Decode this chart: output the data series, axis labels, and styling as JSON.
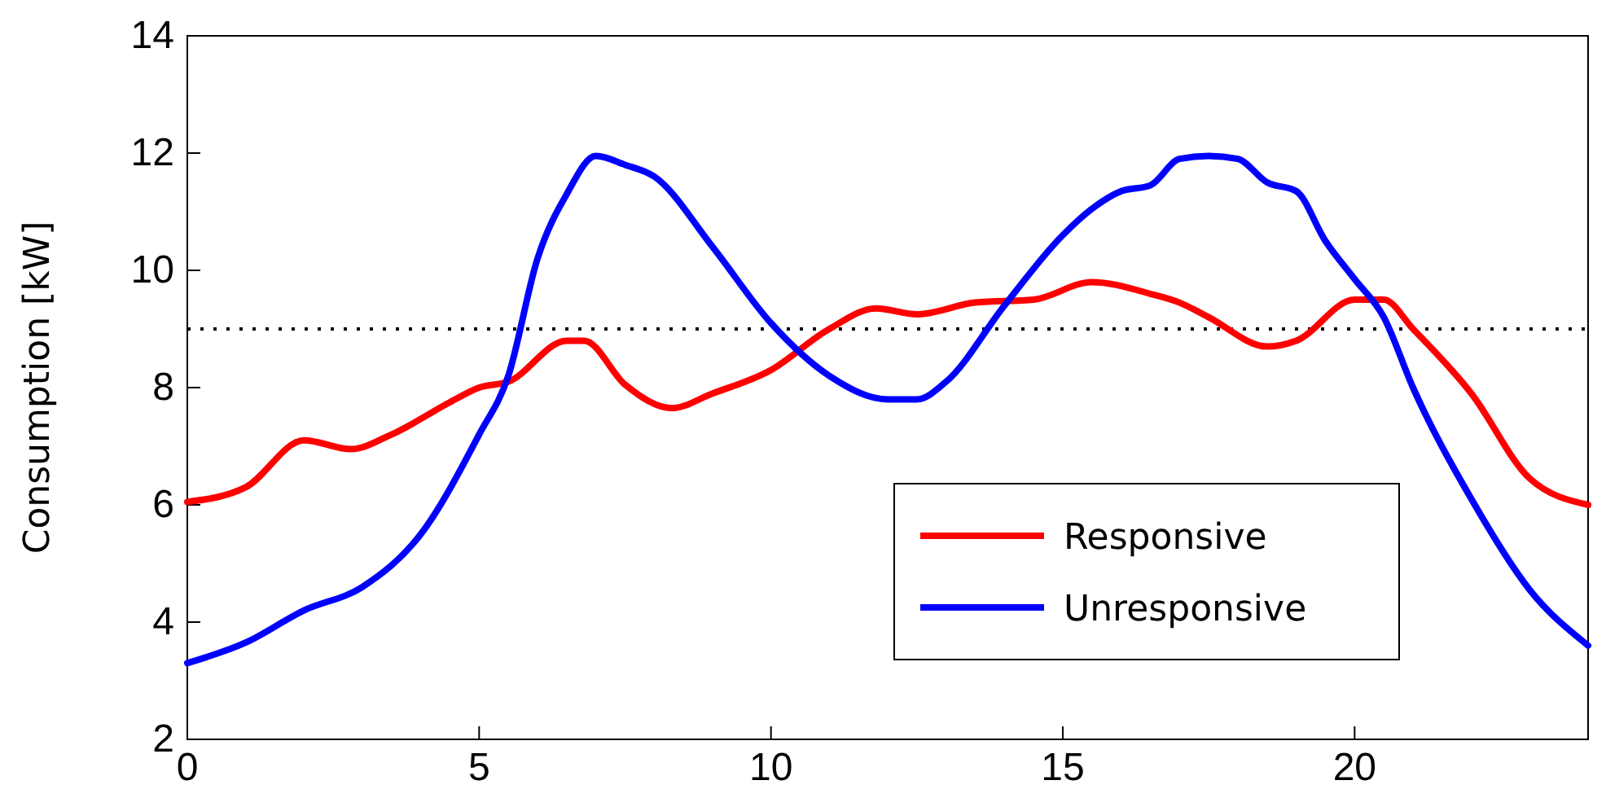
{
  "chart_data": {
    "type": "line",
    "ylabel": "Consumption [kW]",
    "xlim": [
      0,
      24
    ],
    "xticks": [
      0,
      5,
      10,
      15,
      20
    ],
    "ylim": [
      2,
      14
    ],
    "yticks": [
      2,
      4,
      6,
      8,
      10,
      12,
      14
    ],
    "grid": false,
    "legend": "bottom right",
    "line_style": "solid",
    "marker": "none",
    "ref_lines": [
      {
        "axis": "y",
        "value": 9,
        "color": "#000000",
        "line_style": "dotted"
      }
    ],
    "series": [
      {
        "name": "Responsive",
        "color": "#ff0000",
        "x": [
          0,
          1,
          2,
          2.8,
          3.5,
          4.5,
          5,
          5.5,
          6.5,
          6.8,
          7.5,
          8.3,
          9,
          10,
          11,
          11.8,
          12.5,
          13.5,
          14.5,
          15.5,
          16.5,
          17,
          17.5,
          18.5,
          19,
          20,
          20.5,
          21,
          22,
          23,
          24
        ],
        "values": [
          6.05,
          6.3,
          7.1,
          6.95,
          7.2,
          7.75,
          8.0,
          8.1,
          8.8,
          8.8,
          8.05,
          7.65,
          7.9,
          8.3,
          9.0,
          9.35,
          9.25,
          9.45,
          9.5,
          9.8,
          9.6,
          9.45,
          9.2,
          8.7,
          8.8,
          9.5,
          9.5,
          9.0,
          7.9,
          6.45,
          6.0
        ]
      },
      {
        "name": "Unresponsive",
        "color": "#0000ff",
        "x": [
          0,
          1,
          2,
          3,
          4,
          5,
          5.5,
          6,
          6.5,
          7,
          7.5,
          8,
          9,
          10,
          11,
          12,
          12.5,
          13,
          14,
          15,
          15.5,
          16,
          16.5,
          17,
          17.5,
          18,
          18.5,
          19,
          19.5,
          20,
          20.5,
          21,
          22,
          23,
          24
        ],
        "values": [
          3.3,
          3.65,
          4.2,
          4.6,
          5.5,
          7.2,
          8.2,
          10.2,
          11.3,
          11.95,
          11.8,
          11.6,
          10.4,
          9.1,
          8.2,
          7.8,
          7.8,
          8.1,
          9.4,
          10.6,
          11.05,
          11.35,
          11.45,
          11.9,
          11.95,
          11.9,
          11.5,
          11.35,
          10.5,
          9.85,
          9.2,
          8.0,
          6.1,
          4.55,
          3.6
        ]
      }
    ]
  }
}
